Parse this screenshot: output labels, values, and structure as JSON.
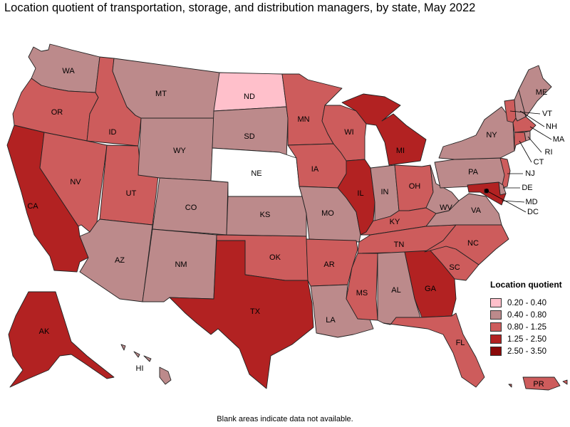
{
  "title": "Location quotient of transportation, storage, and distribution managers, by state, May 2022",
  "note": "Blank areas indicate data not available.",
  "legend": {
    "title": "Location quotient",
    "items": [
      {
        "label": "0.20 - 0.40",
        "color": "#ffc0cb"
      },
      {
        "label": "0.40 - 0.80",
        "color": "#bc8a8b"
      },
      {
        "label": "0.80 - 1.25",
        "color": "#cd5c5c"
      },
      {
        "label": "1.25 - 2.50",
        "color": "#b22222"
      },
      {
        "label": "2.50 - 3.50",
        "color": "#8b0a0a"
      }
    ]
  },
  "no_data_color": "#ffffff",
  "states": [
    {
      "abbr": "WA",
      "class": 1
    },
    {
      "abbr": "OR",
      "class": 2
    },
    {
      "abbr": "CA",
      "class": 3
    },
    {
      "abbr": "ID",
      "class": 2
    },
    {
      "abbr": "NV",
      "class": 2
    },
    {
      "abbr": "UT",
      "class": 2
    },
    {
      "abbr": "AZ",
      "class": 1
    },
    {
      "abbr": "MT",
      "class": 1
    },
    {
      "abbr": "WY",
      "class": 1
    },
    {
      "abbr": "CO",
      "class": 1
    },
    {
      "abbr": "NM",
      "class": 1
    },
    {
      "abbr": "ND",
      "class": 0
    },
    {
      "abbr": "SD",
      "class": 1
    },
    {
      "abbr": "NE",
      "class": null
    },
    {
      "abbr": "KS",
      "class": 1
    },
    {
      "abbr": "OK",
      "class": 2
    },
    {
      "abbr": "TX",
      "class": 3
    },
    {
      "abbr": "MN",
      "class": 2
    },
    {
      "abbr": "IA",
      "class": 2
    },
    {
      "abbr": "MO",
      "class": 1
    },
    {
      "abbr": "AR",
      "class": 2
    },
    {
      "abbr": "LA",
      "class": 1
    },
    {
      "abbr": "WI",
      "class": 2
    },
    {
      "abbr": "IL",
      "class": 3
    },
    {
      "abbr": "MI",
      "class": 3
    },
    {
      "abbr": "IN",
      "class": 1
    },
    {
      "abbr": "OH",
      "class": 2
    },
    {
      "abbr": "KY",
      "class": 2
    },
    {
      "abbr": "TN",
      "class": 2
    },
    {
      "abbr": "MS",
      "class": 2
    },
    {
      "abbr": "AL",
      "class": 1
    },
    {
      "abbr": "GA",
      "class": 3
    },
    {
      "abbr": "FL",
      "class": 2
    },
    {
      "abbr": "SC",
      "class": 2
    },
    {
      "abbr": "NC",
      "class": 2
    },
    {
      "abbr": "VA",
      "class": 1
    },
    {
      "abbr": "WV",
      "class": 1
    },
    {
      "abbr": "PA",
      "class": 1
    },
    {
      "abbr": "NY",
      "class": 1
    },
    {
      "abbr": "VT",
      "class": 2
    },
    {
      "abbr": "NH",
      "class": 1
    },
    {
      "abbr": "ME",
      "class": 1
    },
    {
      "abbr": "MA",
      "class": 2
    },
    {
      "abbr": "RI",
      "class": 1
    },
    {
      "abbr": "CT",
      "class": 2
    },
    {
      "abbr": "NJ",
      "class": 2
    },
    {
      "abbr": "DE",
      "class": 1
    },
    {
      "abbr": "MD",
      "class": 3
    },
    {
      "abbr": "DC",
      "class": 4
    },
    {
      "abbr": "AK",
      "class": 3
    },
    {
      "abbr": "HI",
      "class": 1
    },
    {
      "abbr": "PR",
      "class": 2
    }
  ]
}
